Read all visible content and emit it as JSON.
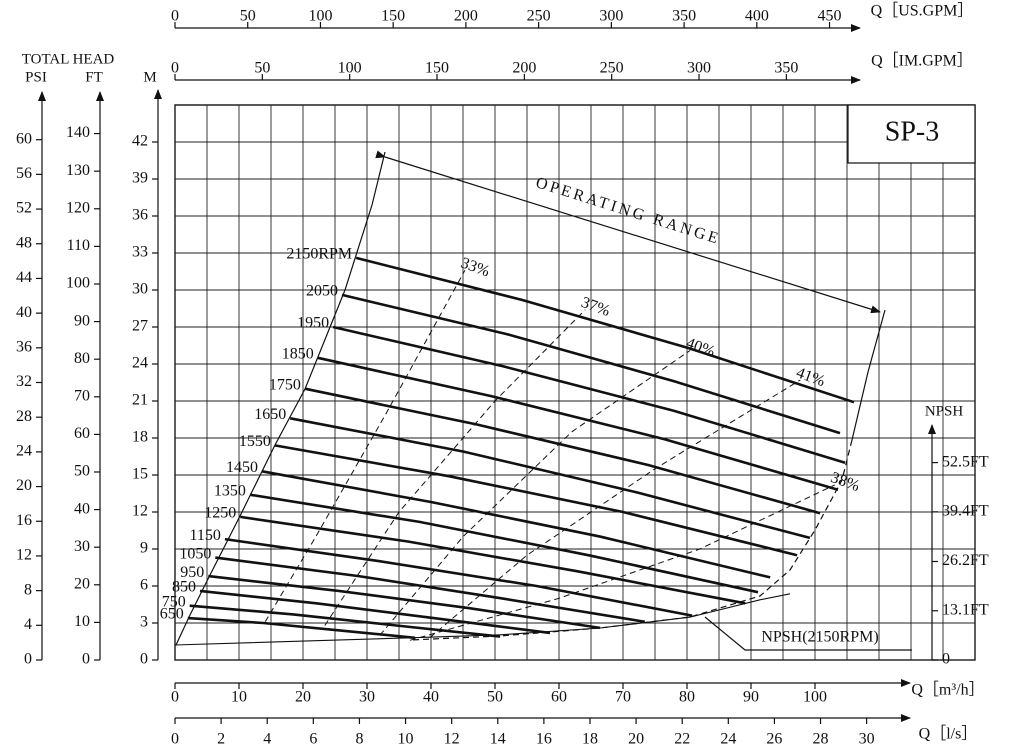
{
  "chart_data": {
    "type": "line",
    "title": "SP-3",
    "annotation": "OPERATING RANGE",
    "y_title": "TOTAL HEAD",
    "line_color": "#111111",
    "xlabel": "Q［m³/h］",
    "xlim": [
      0,
      125
    ],
    "xticks": [
      0,
      10,
      20,
      30,
      40,
      50,
      60,
      70,
      80,
      90,
      100
    ],
    "xgrid": [
      0,
      5,
      10,
      15,
      20,
      25,
      30,
      35,
      40,
      45,
      50,
      55,
      60,
      65,
      70,
      75,
      80,
      85,
      90,
      95,
      100,
      105,
      110,
      115,
      120,
      125
    ],
    "ylabel": "M",
    "ylim": [
      0,
      45
    ],
    "yticks": [
      0,
      3,
      6,
      9,
      12,
      15,
      18,
      21,
      24,
      27,
      30,
      33,
      36,
      39,
      42
    ],
    "grid": true,
    "top_axes": [
      {
        "label": "Q［US.GPM］",
        "lim": [
          0,
          550
        ],
        "ticks": [
          0,
          50,
          100,
          150,
          200,
          250,
          300,
          350,
          400,
          450
        ]
      },
      {
        "label": "Q［IM.GPM］",
        "lim": [
          0,
          458
        ],
        "ticks": [
          0,
          50,
          100,
          150,
          200,
          250,
          300,
          350
        ]
      }
    ],
    "bottom_axes": [
      {
        "label": "Q［l/s］",
        "lim": [
          0,
          34.7
        ],
        "ticks": [
          0,
          2,
          4,
          6,
          8,
          10,
          12,
          14,
          16,
          18,
          20,
          22,
          24,
          26,
          28,
          30
        ]
      }
    ],
    "left_axes": [
      {
        "label": "PSI",
        "lim": [
          0,
          64
        ],
        "ticks": [
          0,
          4,
          8,
          12,
          16,
          20,
          24,
          28,
          32,
          36,
          40,
          44,
          48,
          52,
          56,
          60
        ]
      },
      {
        "label": "FT",
        "lim": [
          0,
          147.6
        ],
        "ticks": [
          0,
          10,
          20,
          30,
          40,
          50,
          60,
          70,
          80,
          90,
          100,
          110,
          120,
          130,
          140
        ]
      }
    ],
    "y2label": "NPSH",
    "y2lim": [
      0,
      147.6
    ],
    "y2ticks": [
      0,
      {
        "value": 13.1,
        "label": "13.1FT"
      },
      {
        "value": 26.2,
        "label": "26.2FT"
      },
      {
        "value": 39.4,
        "label": "39.4FT"
      },
      {
        "value": 52.5,
        "label": "52.5FT"
      }
    ],
    "series": [
      {
        "name": "2150RPM",
        "x": [
          28.3,
          54.2,
          80.2,
          106.1
        ],
        "values": [
          32.6,
          29.2,
          25.3,
          20.9
        ]
      },
      {
        "name": "2050",
        "x": [
          26.1,
          52.0,
          78.0,
          103.9
        ],
        "values": [
          29.6,
          26.4,
          22.6,
          18.4
        ]
      },
      {
        "name": "1950",
        "x": [
          24.7,
          51.4,
          78.0,
          104.7
        ],
        "values": [
          27.0,
          23.8,
          20.2,
          16.0
        ]
      },
      {
        "name": "1850",
        "x": [
          22.3,
          49.4,
          76.5,
          103.6
        ],
        "values": [
          24.5,
          21.4,
          17.9,
          13.8
        ]
      },
      {
        "name": "1750",
        "x": [
          20.3,
          47.1,
          74.0,
          100.8
        ],
        "values": [
          22.0,
          19.1,
          15.8,
          11.9
        ]
      },
      {
        "name": "1650",
        "x": [
          18.0,
          45.1,
          72.1,
          99.2
        ],
        "values": [
          19.6,
          16.9,
          13.6,
          9.9
        ]
      },
      {
        "name": "1550",
        "x": [
          15.6,
          42.8,
          70.0,
          97.2
        ],
        "values": [
          17.4,
          14.9,
          12.0,
          8.5
        ]
      },
      {
        "name": "1450",
        "x": [
          13.6,
          40.1,
          66.5,
          93.0
        ],
        "values": [
          15.3,
          12.8,
          10.0,
          6.7
        ]
      },
      {
        "name": "1350",
        "x": [
          11.7,
          38.2,
          64.6,
          91.1
        ],
        "values": [
          13.4,
          11.2,
          8.5,
          5.5
        ]
      },
      {
        "name": "1250",
        "x": [
          10.2,
          36.5,
          62.8,
          89.1
        ],
        "values": [
          11.6,
          9.6,
          7.2,
          4.6
        ]
      },
      {
        "name": "1150",
        "x": [
          7.8,
          32.1,
          56.5,
          80.8
        ],
        "values": [
          9.8,
          8.0,
          6.0,
          3.6
        ]
      },
      {
        "name": "1050",
        "x": [
          6.3,
          28.7,
          51.0,
          73.4
        ],
        "values": [
          8.3,
          6.8,
          5.0,
          3.1
        ]
      },
      {
        "name": "950",
        "x": [
          5.2,
          25.6,
          46.0,
          66.4
        ],
        "values": [
          6.8,
          5.6,
          4.2,
          2.6
        ]
      },
      {
        "name": "850",
        "x": [
          3.9,
          22.1,
          40.4,
          58.6
        ],
        "values": [
          5.6,
          4.6,
          3.4,
          2.2
        ]
      },
      {
        "name": "750",
        "x": [
          2.3,
          18.5,
          34.6,
          50.8
        ],
        "values": [
          4.4,
          3.7,
          2.8,
          1.9
        ]
      },
      {
        "name": "650",
        "x": [
          2.0,
          13.8,
          25.7,
          37.5
        ],
        "values": [
          3.4,
          3.0,
          2.4,
          1.8
        ]
      }
    ],
    "efficiency": [
      {
        "name": "33%",
        "x": [
          14.1,
          22,
          33,
          45.3
        ],
        "values": [
          3.1,
          10,
          20,
          31.6
        ]
      },
      {
        "name": "37%",
        "x": [
          23.4,
          35,
          50,
          64.1
        ],
        "values": [
          2.8,
          12,
          21,
          28.4
        ]
      },
      {
        "name": "40%",
        "x": [
          32,
          45,
          62,
          80.5
        ],
        "values": [
          2.0,
          10,
          18.5,
          25.1
        ]
      },
      {
        "name": "41%",
        "x": [
          39.8,
          55,
          75,
          97.7
        ],
        "values": [
          1.8,
          8.5,
          15.5,
          22.7
        ]
      },
      {
        "name": "38%",
        "x": [
          36.7,
          60,
          82,
          103.1
        ],
        "values": [
          1.6,
          5,
          9,
          14.2
        ]
      }
    ],
    "npsh": {
      "name": "NPSH(2150RPM)",
      "axis": "y2",
      "x": [
        0,
        36.7,
        50.8,
        66.4,
        80.5,
        91.4,
        96.1
      ],
      "values": [
        4.0,
        5.9,
        6.7,
        8.5,
        11.4,
        16.0,
        17.6
      ]
    }
  }
}
